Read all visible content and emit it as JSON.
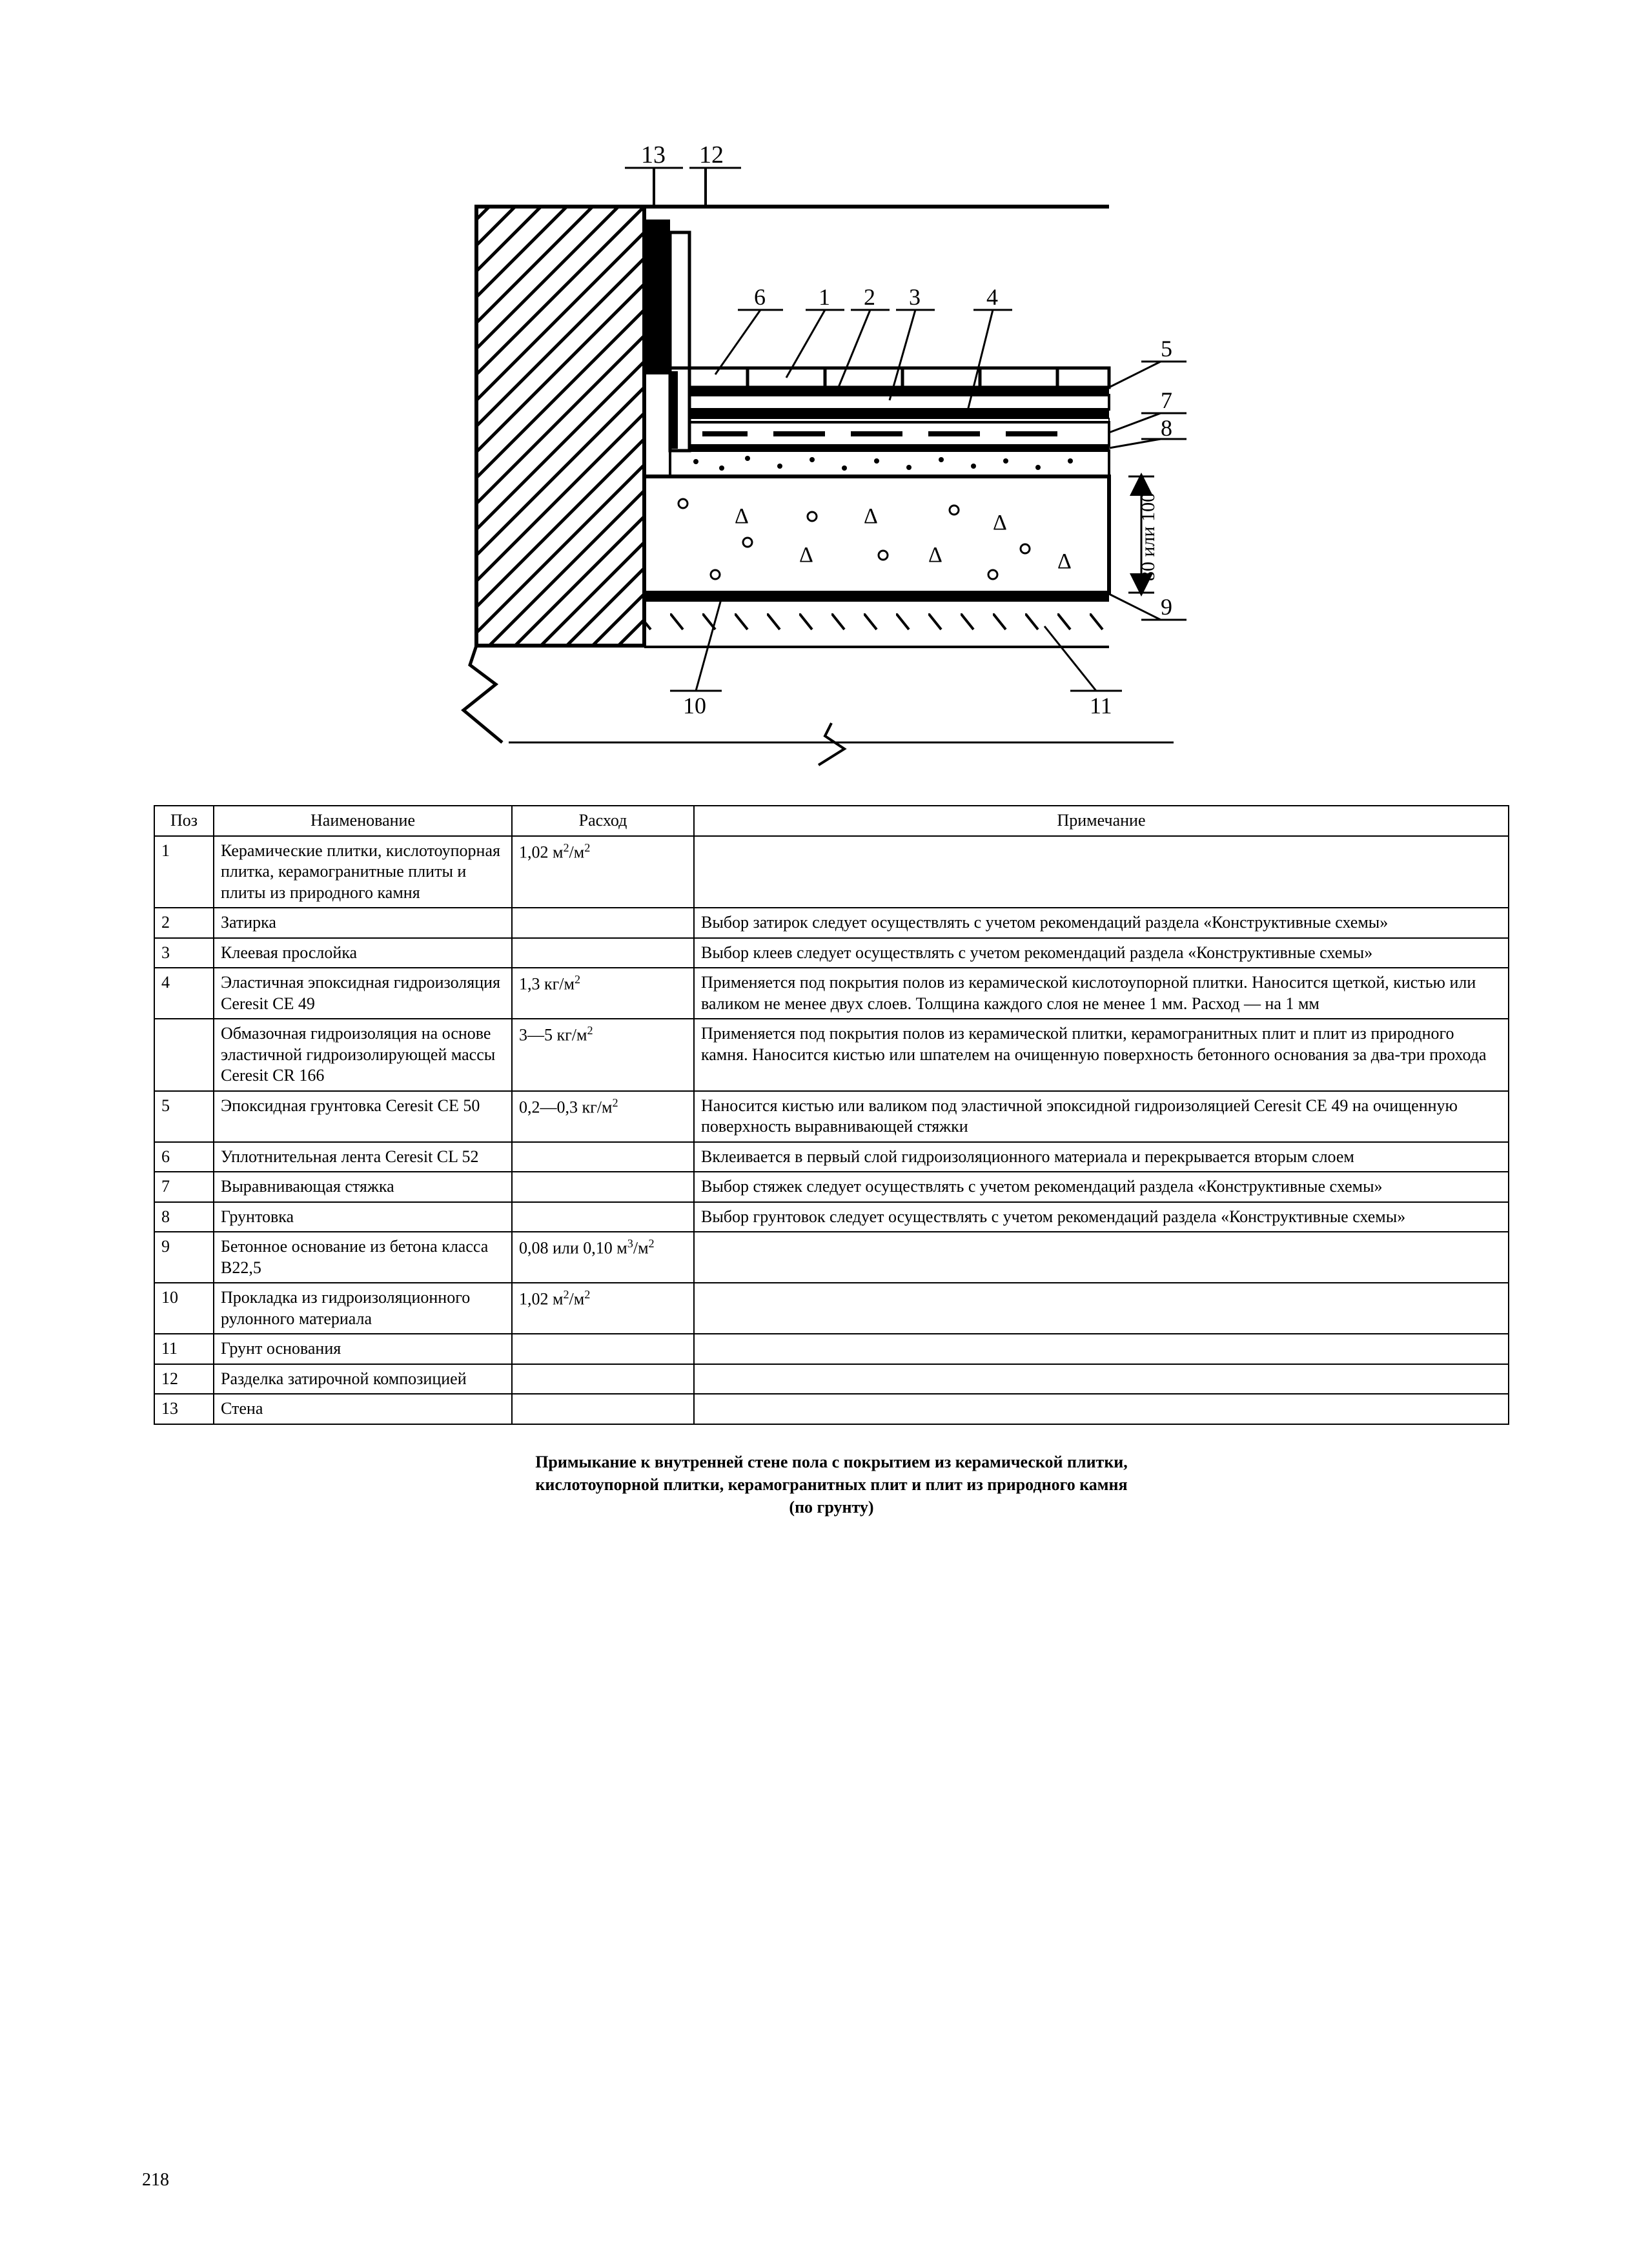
{
  "diagram": {
    "labels": [
      "1",
      "2",
      "3",
      "4",
      "5",
      "6",
      "7",
      "8",
      "9",
      "10",
      "11",
      "12",
      "13"
    ],
    "dim_text": "80 или 100"
  },
  "table": {
    "headers": {
      "pos": "Поз",
      "name": "Наименование",
      "cons": "Расход",
      "note": "Примечание"
    },
    "rows": [
      {
        "pos": "1",
        "name": "Керамические плитки, кислотоупорная плитка, керамогранитные плиты и плиты из природного камня",
        "cons": "1,02 м²/м²",
        "note": ""
      },
      {
        "pos": "2",
        "name": "Затирка",
        "cons": "",
        "note": "Выбор затирок следует осуществлять с учетом рекомендаций раздела «Конструктивные схемы»"
      },
      {
        "pos": "3",
        "name": "Клеевая прослойка",
        "cons": "",
        "note": "Выбор клеев следует осуществлять с учетом рекомендаций раздела «Конструктивные схемы»"
      },
      {
        "pos": "4",
        "name": "Эластичная эпоксидная гидроизоляция Ceresit CE 49",
        "cons": "1,3 кг/м²",
        "note": "Применяется под покрытия полов из керамической кислотоупорной плитки. Наносится щеткой, кистью или валиком не менее двух слоев. Толщина каждого слоя не менее 1 мм. Расход — на 1 мм"
      },
      {
        "pos": "",
        "name": "Обмазочная гидроизоляция на основе эластичной гидроизолирующей массы Ceresit CR 166",
        "cons": "3—5 кг/м²",
        "note": "Применяется под покрытия полов из керамической плитки, керамогранитных плит и плит из природного камня. Наносится кистью или шпателем на очищенную поверхность бетонного основания за два-три прохода"
      },
      {
        "pos": "5",
        "name": "Эпоксидная грунтовка Ceresit CE 50",
        "cons": "0,2—0,3 кг/м²",
        "note": "Наносится кистью или валиком под эластичной эпоксидной гидроизоляцией Ceresit CE 49 на очищенную поверхность выравнивающей стяжки"
      },
      {
        "pos": "6",
        "name": "Уплотнительная лента Ceresit CL 52",
        "cons": "",
        "note": "Вклеивается в первый слой гидроизоляционного материала и перекрывается вторым слоем"
      },
      {
        "pos": "7",
        "name": "Выравнивающая стяжка",
        "cons": "",
        "note": "Выбор стяжек следует осуществлять с учетом рекомендаций раздела «Конструктивные схемы»"
      },
      {
        "pos": "8",
        "name": "Грунтовка",
        "cons": "",
        "note": "Выбор грунтовок следует осуществлять с учетом рекомендаций раздела «Конструктивные схемы»"
      },
      {
        "pos": "9",
        "name": "Бетонное основание из бетона класса В22,5",
        "cons": "0,08 или 0,10 м³/м²",
        "note": ""
      },
      {
        "pos": "10",
        "name": "Прокладка из гидроизоляционного рулонного материала",
        "cons": "1,02 м²/м²",
        "note": ""
      },
      {
        "pos": "11",
        "name": "Грунт основания",
        "cons": "",
        "note": ""
      },
      {
        "pos": "12",
        "name": "Разделка затирочной композицией",
        "cons": "",
        "note": ""
      },
      {
        "pos": "13",
        "name": "Стена",
        "cons": "",
        "note": ""
      }
    ]
  },
  "caption": {
    "line1": "Примыкание к внутренней стене пола с покрытием из керамической плитки,",
    "line2": "кислотоупорной плитки, керамогранитных плит и плит из природного камня",
    "line3": "(по грунту)"
  },
  "page_number": "218"
}
